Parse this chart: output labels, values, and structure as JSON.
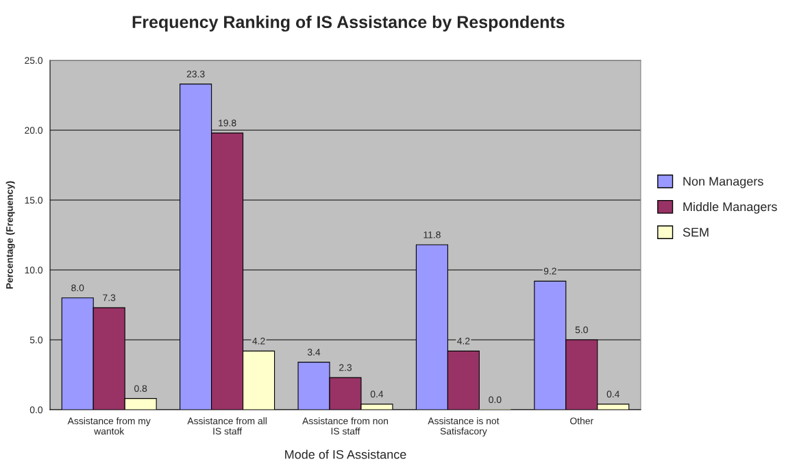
{
  "chart_data": {
    "type": "bar",
    "title": "Frequency Ranking of IS Assistance by Respondents",
    "xlabel": "Mode of IS Assistance",
    "ylabel": "Percentage (Frequency)",
    "categories": [
      "Assistance from my wantok",
      "Assistance from all IS staff",
      "Assistance from non IS staff",
      "Assistance is not Satisfacory",
      "Other"
    ],
    "series": [
      {
        "name": "Non Managers",
        "color": "#9999ff",
        "values": [
          8.0,
          23.3,
          3.4,
          11.8,
          9.2
        ],
        "value_labels": [
          "8.0",
          "23.3",
          "3.4",
          "11.8",
          "9.2"
        ]
      },
      {
        "name": "Middle Managers",
        "color": "#993366",
        "values": [
          7.3,
          19.8,
          2.3,
          4.2,
          5.0
        ],
        "value_labels": [
          "7.3",
          "19.8",
          "2.3",
          "4.2",
          "5.0"
        ]
      },
      {
        "name": "SEM",
        "color": "#ffffcc",
        "values": [
          0.8,
          4.2,
          0.4,
          0.0,
          0.4
        ],
        "value_labels": [
          "0.8",
          "4.2",
          "0.4",
          "0.0",
          "0.4"
        ]
      }
    ],
    "ylim": [
      0,
      25
    ],
    "yticks": [
      {
        "value": 0,
        "label": "0.0"
      },
      {
        "value": 5,
        "label": "5.0"
      },
      {
        "value": 10,
        "label": "10.0"
      },
      {
        "value": 15,
        "label": "15.0"
      },
      {
        "value": 20,
        "label": "20.0"
      },
      {
        "value": 25,
        "label": "25.0"
      }
    ],
    "grid": "y",
    "legend": "right"
  }
}
